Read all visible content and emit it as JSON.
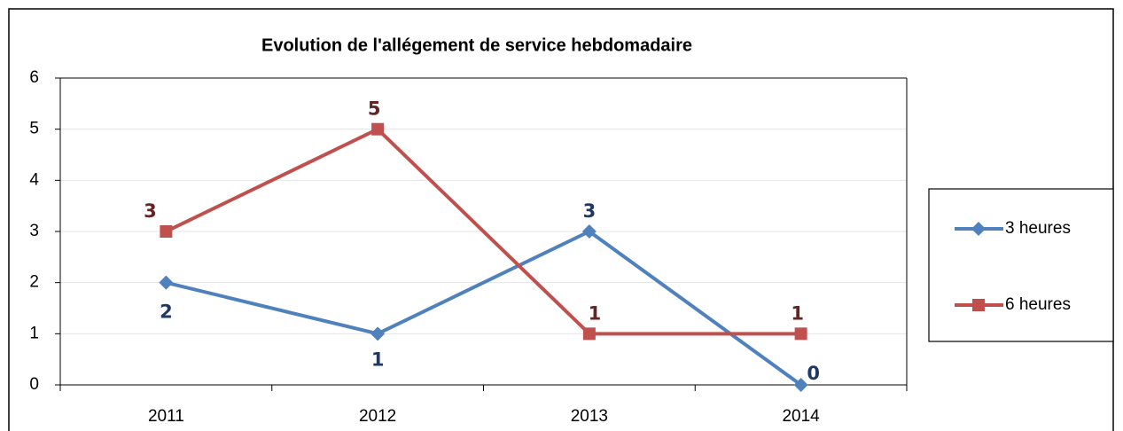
{
  "chart_data": {
    "type": "line",
    "title": "Evolution de l'allégement de service hebdomadaire",
    "categories": [
      "2011",
      "2012",
      "2013",
      "2014"
    ],
    "series": [
      {
        "name": "3 heures",
        "color": "#4f81bd",
        "values": [
          2,
          1,
          3,
          0
        ]
      },
      {
        "name": "6 heures",
        "color": "#c0504d",
        "values": [
          3,
          5,
          1,
          1
        ]
      }
    ],
    "ylim": [
      0,
      6
    ],
    "yticks": [
      0,
      1,
      2,
      3,
      4,
      5,
      6
    ],
    "grid": true,
    "legend": "right"
  }
}
